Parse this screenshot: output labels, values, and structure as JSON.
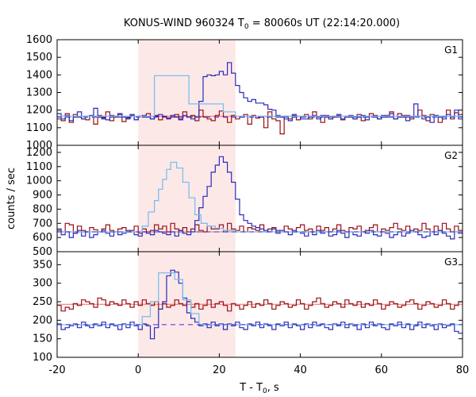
{
  "chart_data": {
    "type": "line",
    "title_parts": [
      "KONUS-WIND 960324 T",
      "0",
      " = 80060s UT (22:14:20.000)"
    ],
    "xlabel_parts": [
      "T - T",
      "0",
      ", s"
    ],
    "ylabel": "counts / sec",
    "xlim": [
      -20,
      80
    ],
    "xticks": [
      -20,
      0,
      20,
      40,
      60,
      80
    ],
    "shaded_interval": [
      0,
      24
    ],
    "colors": {
      "shade": "#fde8e8",
      "dark_red": "#9b0e12",
      "light_red": "#e07070",
      "dark_blue": "#2a2ab8",
      "light_blue": "#78c0ee",
      "dash_blue": "#3333cc"
    },
    "panels": [
      {
        "label": "G1",
        "ylim": [
          1000,
          1600
        ],
        "yticks": [
          1000,
          1100,
          1200,
          1300,
          1400,
          1500,
          1600
        ],
        "background": 1165,
        "burst": [
          [
            -20,
            1165
          ],
          [
            4,
            1165
          ],
          [
            4,
            1395
          ],
          [
            12.5,
            1395
          ],
          [
            12.5,
            1235
          ],
          [
            21,
            1235
          ],
          [
            21,
            1190
          ],
          [
            24,
            1190
          ],
          [
            24,
            1165
          ],
          [
            80,
            1165
          ]
        ],
        "bg_blue": 1160,
        "series_red": [
          1150,
          1140,
          1180,
          1130,
          1175,
          1160,
          1150,
          1145,
          1165,
          1120,
          1170,
          1155,
          1190,
          1140,
          1160,
          1175,
          1135,
          1155,
          1170,
          1145,
          1165,
          1160,
          1180,
          1150,
          1170,
          1145,
          1165,
          1155,
          1160,
          1175,
          1150,
          1190,
          1160,
          1170,
          1140,
          1200,
          1160,
          1150,
          1140,
          1170,
          1195,
          1160,
          1130,
          1170,
          1150,
          1160,
          1175,
          1120,
          1170,
          1155,
          1160,
          1100,
          1190,
          1150,
          1140,
          1065,
          1165,
          1150,
          1170,
          1145,
          1160,
          1175,
          1150,
          1190,
          1160,
          1130,
          1170,
          1150,
          1160,
          1170,
          1145,
          1165,
          1160,
          1150,
          1175,
          1140,
          1160,
          1180,
          1170,
          1150,
          1160,
          1170,
          1190,
          1150,
          1180,
          1160,
          1170,
          1150,
          1165,
          1200,
          1170,
          1140,
          1175,
          1165,
          1130,
          1165,
          1200,
          1150,
          1185,
          1175
        ],
        "series_blue": [
          1180,
          1150,
          1170,
          1140,
          1160,
          1190,
          1150,
          1165,
          1170,
          1210,
          1160,
          1150,
          1145,
          1170,
          1165,
          1180,
          1160,
          1150,
          1175,
          1145,
          1165,
          1170,
          1160,
          1150,
          1165,
          1175,
          1160,
          1150,
          1170,
          1160,
          1145,
          1170,
          1160,
          1150,
          1160,
          1250,
          1390,
          1400,
          1395,
          1400,
          1420,
          1400,
          1470,
          1410,
          1340,
          1300,
          1270,
          1250,
          1260,
          1240,
          1240,
          1230,
          1205,
          1200,
          1170,
          1160,
          1150,
          1140,
          1175,
          1165,
          1150,
          1150,
          1160,
          1170,
          1150,
          1170,
          1160,
          1150,
          1165,
          1175,
          1150,
          1160,
          1170,
          1150,
          1160,
          1170,
          1145,
          1165,
          1160,
          1150,
          1170,
          1160,
          1180,
          1150,
          1160,
          1170,
          1140,
          1160,
          1235,
          1165,
          1150,
          1160,
          1130,
          1170,
          1160,
          1150,
          1175,
          1160,
          1200,
          1150
        ]
      },
      {
        "label": "G2",
        "ylim": [
          500,
          1250
        ],
        "yticks": [
          500,
          600,
          700,
          800,
          900,
          1000,
          1100,
          1200
        ],
        "background": 640,
        "burst": [
          [
            -20,
            640
          ],
          [
            1,
            640
          ],
          [
            1,
            680
          ],
          [
            2.5,
            680
          ],
          [
            2.5,
            780
          ],
          [
            4,
            780
          ],
          [
            4,
            860
          ],
          [
            5,
            860
          ],
          [
            5,
            940
          ],
          [
            6,
            940
          ],
          [
            6,
            1010
          ],
          [
            7,
            1010
          ],
          [
            7,
            1080
          ],
          [
            8,
            1080
          ],
          [
            8,
            1130
          ],
          [
            9.5,
            1130
          ],
          [
            9.5,
            1090
          ],
          [
            11,
            1090
          ],
          [
            11,
            990
          ],
          [
            12.5,
            990
          ],
          [
            12.5,
            880
          ],
          [
            14,
            880
          ],
          [
            14,
            760
          ],
          [
            15.5,
            760
          ],
          [
            15.5,
            700
          ],
          [
            17,
            700
          ],
          [
            17,
            680
          ],
          [
            19,
            680
          ],
          [
            19,
            665
          ],
          [
            21,
            665
          ],
          [
            21,
            650
          ],
          [
            24,
            650
          ],
          [
            24,
            640
          ],
          [
            80,
            640
          ]
        ],
        "bg_blue": 640,
        "series_red": [
          650,
          640,
          700,
          690,
          630,
          680,
          650,
          640,
          670,
          655,
          640,
          660,
          690,
          650,
          640,
          660,
          670,
          640,
          650,
          680,
          630,
          660,
          640,
          650,
          690,
          660,
          680,
          640,
          700,
          660,
          650,
          670,
          640,
          660,
          690,
          650,
          640,
          680,
          660,
          660,
          690,
          640,
          700,
          660,
          650,
          680,
          640,
          670,
          660,
          650,
          690,
          640,
          660,
          670,
          650,
          640,
          680,
          660,
          640,
          670,
          690,
          650,
          660,
          640,
          680,
          650,
          670,
          640,
          660,
          690,
          650,
          640,
          670,
          660,
          680,
          640,
          650,
          670,
          690,
          640,
          660,
          650,
          670,
          700,
          660,
          650,
          680,
          640,
          660,
          650,
          700,
          660,
          640,
          680,
          650,
          700,
          660,
          640,
          680,
          650
        ],
        "series_blue": [
          660,
          620,
          640,
          600,
          630,
          650,
          610,
          640,
          600,
          620,
          640,
          650,
          630,
          610,
          640,
          620,
          630,
          650,
          640,
          620,
          610,
          640,
          630,
          620,
          650,
          640,
          630,
          620,
          640,
          610,
          650,
          630,
          620,
          640,
          720,
          810,
          890,
          960,
          1060,
          1110,
          1170,
          1130,
          1060,
          990,
          870,
          760,
          720,
          700,
          680,
          670,
          660,
          650,
          640,
          660,
          630,
          650,
          640,
          620,
          650,
          640,
          630,
          610,
          640,
          620,
          650,
          630,
          640,
          610,
          620,
          650,
          630,
          600,
          640,
          620,
          610,
          640,
          630,
          650,
          620,
          610,
          640,
          630,
          600,
          620,
          640,
          610,
          630,
          650,
          640,
          620,
          600,
          610,
          640,
          620,
          650,
          630,
          610,
          590,
          640,
          630
        ]
      },
      {
        "label": "G3",
        "ylim": [
          100,
          385
        ],
        "yticks": [
          100,
          150,
          200,
          250,
          300,
          350
        ],
        "background_red": 243,
        "background_blue": 188,
        "burst": [
          [
            -20,
            188
          ],
          [
            1,
            188
          ],
          [
            1,
            210
          ],
          [
            3,
            210
          ],
          [
            3,
            250
          ],
          [
            5,
            250
          ],
          [
            5,
            328
          ],
          [
            9,
            328
          ],
          [
            9,
            310
          ],
          [
            11,
            310
          ],
          [
            11,
            255
          ],
          [
            13,
            255
          ],
          [
            13,
            218
          ],
          [
            15,
            218
          ],
          [
            15,
            188
          ],
          [
            80,
            188
          ]
        ],
        "bg_blue": 188,
        "series_red": [
          240,
          225,
          235,
          230,
          245,
          240,
          255,
          250,
          245,
          235,
          260,
          255,
          240,
          250,
          245,
          240,
          255,
          245,
          235,
          250,
          240,
          255,
          245,
          240,
          250,
          230,
          245,
          235,
          240,
          255,
          245,
          240,
          250,
          235,
          245,
          230,
          240,
          255,
          235,
          245,
          250,
          240,
          225,
          245,
          240,
          230,
          240,
          250,
          235,
          245,
          240,
          255,
          245,
          230,
          240,
          250,
          245,
          235,
          240,
          255,
          245,
          230,
          240,
          250,
          260,
          245,
          235,
          240,
          250,
          245,
          235,
          255,
          245,
          240,
          250,
          235,
          245,
          240,
          255,
          245,
          230,
          240,
          250,
          245,
          235,
          240,
          250,
          255,
          245,
          230,
          240,
          250,
          245,
          235,
          240,
          255,
          245,
          230,
          240,
          250
        ],
        "series_blue": [
          190,
          175,
          180,
          185,
          190,
          180,
          195,
          185,
          180,
          190,
          185,
          195,
          180,
          190,
          185,
          175,
          190,
          180,
          195,
          185,
          175,
          190,
          185,
          150,
          180,
          230,
          250,
          320,
          335,
          330,
          300,
          260,
          220,
          205,
          195,
          185,
          190,
          180,
          195,
          185,
          190,
          175,
          190,
          185,
          195,
          180,
          175,
          190,
          185,
          195,
          180,
          190,
          185,
          175,
          190,
          185,
          195,
          180,
          190,
          185,
          175,
          190,
          180,
          195,
          185,
          190,
          180,
          175,
          190,
          185,
          195,
          180,
          190,
          185,
          175,
          190,
          180,
          195,
          185,
          190,
          180,
          175,
          190,
          185,
          195,
          180,
          190,
          175,
          185,
          195,
          180,
          190,
          185,
          175,
          190,
          180,
          185,
          190,
          170,
          165
        ]
      }
    ]
  }
}
